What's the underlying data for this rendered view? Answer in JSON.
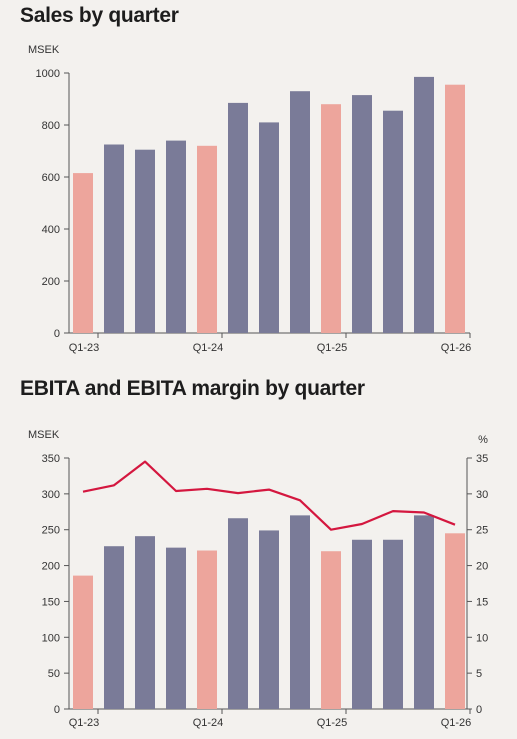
{
  "chart_data": [
    {
      "type": "bar",
      "title": "Sales by quarter",
      "unit_label": "MSEK",
      "ylim": [
        0,
        1000
      ],
      "yticks": [
        0,
        200,
        400,
        600,
        800,
        1000
      ],
      "categories": [
        "Q1-23",
        "Q2-23",
        "Q3-23",
        "Q4-23",
        "Q1-24",
        "Q2-24",
        "Q3-24",
        "Q4-24",
        "Q1-25",
        "Q2-25",
        "Q3-25",
        "Q4-25",
        "Q1-26"
      ],
      "xtick_labels": [
        "Q1-23",
        "",
        "",
        "",
        "Q1-24",
        "",
        "",
        "",
        "Q1-25",
        "",
        "",
        "",
        "Q1-26"
      ],
      "values": [
        615,
        725,
        705,
        740,
        720,
        885,
        810,
        930,
        880,
        915,
        855,
        985,
        955
      ],
      "colors": {
        "q1": "#eda59c",
        "other": "#7a7b98",
        "axis": "#555555"
      },
      "grid": false
    },
    {
      "type": "bar+line",
      "title": "EBITA and EBITA margin by quarter",
      "unit_label": "MSEK",
      "unit_label_right": "%",
      "ylim": [
        0,
        350
      ],
      "yticks": [
        0,
        50,
        100,
        150,
        200,
        250,
        300,
        350
      ],
      "y2lim": [
        0,
        35
      ],
      "y2ticks": [
        0,
        5,
        10,
        15,
        20,
        25,
        30,
        35
      ],
      "categories": [
        "Q1-23",
        "Q2-23",
        "Q3-23",
        "Q4-23",
        "Q1-24",
        "Q2-24",
        "Q3-24",
        "Q4-24",
        "Q1-25",
        "Q2-25",
        "Q3-25",
        "Q4-25",
        "Q1-26"
      ],
      "xtick_labels": [
        "Q1-23",
        "",
        "",
        "",
        "Q1-24",
        "",
        "",
        "",
        "Q1-25",
        "",
        "",
        "",
        "Q1-26"
      ],
      "bars": [
        186,
        227,
        241,
        225,
        221,
        266,
        249,
        270,
        220,
        236,
        236,
        270,
        245
      ],
      "margin": [
        30.3,
        31.2,
        34.5,
        30.4,
        30.7,
        30.1,
        30.6,
        29.1,
        25.0,
        25.8,
        27.6,
        27.4,
        25.7
      ],
      "colors": {
        "q1": "#eda59c",
        "other": "#7a7b98",
        "line": "#d4173f",
        "axis": "#555555"
      },
      "grid": false
    }
  ]
}
